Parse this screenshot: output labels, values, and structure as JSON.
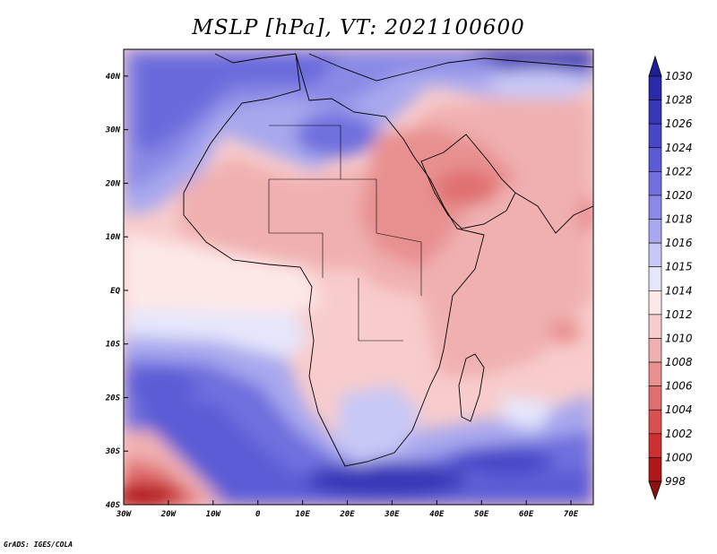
{
  "title": "MSLP [hPa], VT: 2021100600",
  "credit": "GrADS: IGES/COLA",
  "map": {
    "lon_range": [
      -30,
      75
    ],
    "lat_range": [
      -40,
      45
    ],
    "x_ticks": [
      "30W",
      "20W",
      "10W",
      "0",
      "10E",
      "20E",
      "30E",
      "40E",
      "50E",
      "60E",
      "70E"
    ],
    "x_tick_values": [
      -30,
      -20,
      -10,
      0,
      10,
      20,
      30,
      40,
      50,
      60,
      70
    ],
    "y_ticks": [
      "40S",
      "30S",
      "20S",
      "10S",
      "EQ",
      "10N",
      "20N",
      "30N",
      "40N"
    ],
    "y_tick_values": [
      -40,
      -30,
      -20,
      -10,
      0,
      10,
      20,
      30,
      40
    ]
  },
  "colorbar": {
    "levels": [
      "1030",
      "1028",
      "1026",
      "1024",
      "1022",
      "1020",
      "1018",
      "1016",
      "1015",
      "1014",
      "1012",
      "1010",
      "1008",
      "1006",
      "1004",
      "1002",
      "1000",
      "998"
    ],
    "colors": [
      "#1e1e96",
      "#2a2aa8",
      "#3737b8",
      "#4747c8",
      "#5b5bd6",
      "#7070de",
      "#8a8ae6",
      "#a8a8ee",
      "#c8c8f6",
      "#e6e6fb",
      "#fde8e8",
      "#f8cccc",
      "#f0b0b0",
      "#e89090",
      "#e07070",
      "#d85050",
      "#cc3030",
      "#b01818",
      "#901010"
    ]
  }
}
